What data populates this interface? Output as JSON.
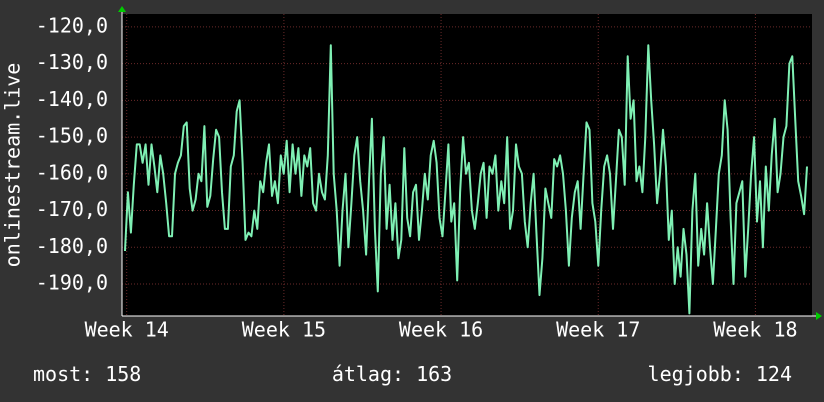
{
  "chart_data": {
    "type": "line",
    "y_label": "onlinestream.live",
    "color": "#7ff0b4",
    "ylim": [
      -198.7,
      -116.5
    ],
    "yticks": [
      {
        "value": -120,
        "label": "-120,0"
      },
      {
        "value": -130,
        "label": "-130,0"
      },
      {
        "value": -140,
        "label": "-140,0"
      },
      {
        "value": -150,
        "label": "-150,0"
      },
      {
        "value": -160,
        "label": "-160,0"
      },
      {
        "value": -170,
        "label": "-170,0"
      },
      {
        "value": -180,
        "label": "-180,0"
      },
      {
        "value": -190,
        "label": "-190,0"
      }
    ],
    "xlim": [
      13.97,
      18.36
    ],
    "xticks": [
      {
        "value": 14,
        "label": "Week 14"
      },
      {
        "value": 15,
        "label": "Week 15"
      },
      {
        "value": 16,
        "label": "Week 16"
      },
      {
        "value": 17,
        "label": "Week 17"
      },
      {
        "value": 18,
        "label": "Week 18"
      }
    ],
    "grid": true,
    "values": [
      -181,
      -165,
      -176,
      -163,
      -152,
      -152,
      -157,
      -152,
      -163,
      -152,
      -158,
      -165,
      -155,
      -160,
      -168,
      -177,
      -177,
      -160,
      -157,
      -155,
      -147,
      -146,
      -164,
      -170,
      -167,
      -160,
      -162,
      -147,
      -169,
      -166,
      -156,
      -148,
      -150,
      -165,
      -175,
      -175,
      -158,
      -155,
      -143,
      -140,
      -157,
      -178,
      -176,
      -177,
      -170,
      -175,
      -162,
      -165,
      -157,
      -152,
      -166,
      -162,
      -168,
      -155,
      -160,
      -151,
      -165,
      -152,
      -160,
      -153,
      -166,
      -155,
      -158,
      -153,
      -168,
      -170,
      -160,
      -165,
      -167,
      -155,
      -125,
      -160,
      -170,
      -185,
      -170,
      -160,
      -180,
      -168,
      -155,
      -150,
      -162,
      -170,
      -182,
      -162,
      -145,
      -175,
      -192,
      -160,
      -150,
      -175,
      -163,
      -178,
      -168,
      -183,
      -178,
      -153,
      -172,
      -177,
      -165,
      -163,
      -178,
      -170,
      -160,
      -167,
      -155,
      -151,
      -157,
      -172,
      -177,
      -165,
      -152,
      -173,
      -168,
      -189,
      -165,
      -150,
      -160,
      -157,
      -170,
      -175,
      -168,
      -160,
      -157,
      -172,
      -158,
      -160,
      -155,
      -170,
      -162,
      -168,
      -150,
      -175,
      -170,
      -152,
      -158,
      -160,
      -173,
      -180,
      -168,
      -160,
      -177,
      -193,
      -183,
      -164,
      -168,
      -172,
      -156,
      -158,
      -155,
      -160,
      -170,
      -185,
      -172,
      -165,
      -162,
      -175,
      -160,
      -146,
      -148,
      -168,
      -173,
      -185,
      -170,
      -158,
      -155,
      -160,
      -175,
      -162,
      -148,
      -150,
      -163,
      -128,
      -145,
      -140,
      -162,
      -158,
      -165,
      -150,
      -125,
      -140,
      -152,
      -168,
      -160,
      -148,
      -158,
      -178,
      -170,
      -190,
      -180,
      -188,
      -175,
      -182,
      -198,
      -170,
      -160,
      -185,
      -175,
      -182,
      -168,
      -180,
      -190,
      -175,
      -160,
      -155,
      -140,
      -148,
      -172,
      -190,
      -168,
      -165,
      -162,
      -188,
      -175,
      -160,
      -150,
      -173,
      -162,
      -180,
      -158,
      -170,
      -155,
      -145,
      -165,
      -160,
      -150,
      -147,
      -130,
      -128,
      -145,
      -162,
      -166,
      -171,
      -158
    ]
  },
  "footer": {
    "current": {
      "label": "most:",
      "value": 158
    },
    "average": {
      "label": "átlag:",
      "value": 163
    },
    "best": {
      "label": "legjobb:",
      "value": 124
    }
  }
}
